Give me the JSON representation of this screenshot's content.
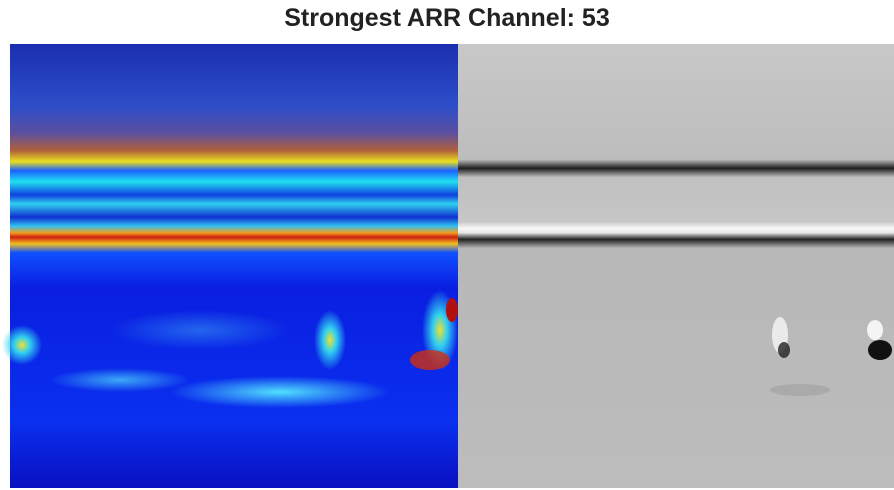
{
  "title": "Strongest ARR Channel: 53"
}
